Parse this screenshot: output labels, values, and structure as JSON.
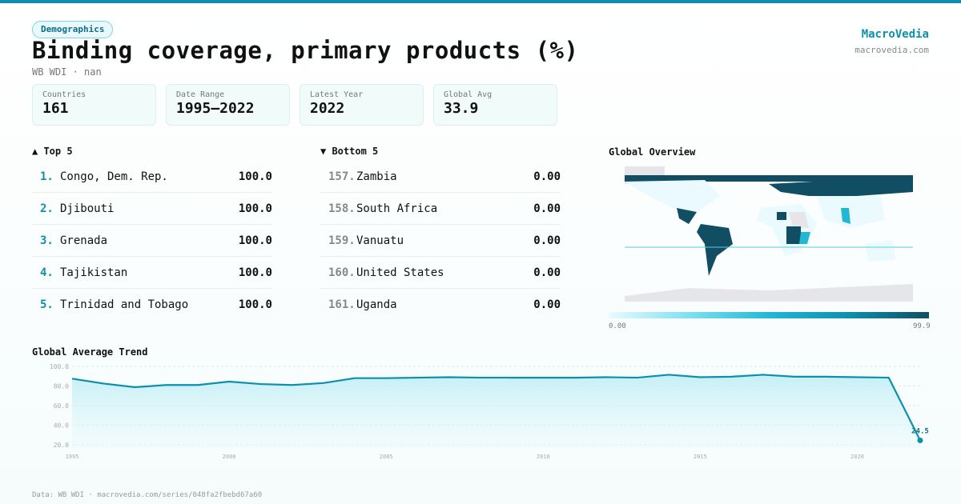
{
  "header": {
    "badge": "Demographics",
    "title": "Binding coverage, primary products (%)",
    "subtitle": "WB WDI · nan",
    "brand": "MacroVedia",
    "brand_url": "macrovedia.com"
  },
  "stats": [
    {
      "label": "Countries",
      "value": "161"
    },
    {
      "label": "Date Range",
      "value": "1995–2022"
    },
    {
      "label": "Latest Year",
      "value": "2022"
    },
    {
      "label": "Global Avg",
      "value": "33.9"
    }
  ],
  "top5": {
    "title": "▲ Top 5",
    "items": [
      {
        "rank": "1.",
        "name": "Congo, Dem. Rep.",
        "value": "100.0"
      },
      {
        "rank": "2.",
        "name": "Djibouti",
        "value": "100.0"
      },
      {
        "rank": "3.",
        "name": "Grenada",
        "value": "100.0"
      },
      {
        "rank": "4.",
        "name": "Tajikistan",
        "value": "100.0"
      },
      {
        "rank": "5.",
        "name": "Trinidad and Tobago",
        "value": "100.0"
      }
    ]
  },
  "bottom5": {
    "title": "▼ Bottom 5",
    "items": [
      {
        "rank": "157.",
        "name": "Zambia",
        "value": "0.00"
      },
      {
        "rank": "158.",
        "name": "South Africa",
        "value": "0.00"
      },
      {
        "rank": "159.",
        "name": "Vanuatu",
        "value": "0.00"
      },
      {
        "rank": "160.",
        "name": "United States",
        "value": "0.00"
      },
      {
        "rank": "161.",
        "name": "Uganda",
        "value": "0.00"
      }
    ]
  },
  "map": {
    "title": "Global Overview",
    "legend_min": "0.00",
    "legend_max": "99.9",
    "colors": {
      "low": "#eafaff",
      "mid": "#22b8d4",
      "high": "#124e63",
      "nodata": "#e6e6ea"
    }
  },
  "chart_data": {
    "type": "area",
    "title": "Global Average Trend",
    "x": [
      1995,
      1996,
      1997,
      1998,
      1999,
      2000,
      2001,
      2002,
      2003,
      2004,
      2005,
      2006,
      2007,
      2008,
      2009,
      2010,
      2011,
      2012,
      2013,
      2014,
      2015,
      2016,
      2017,
      2018,
      2019,
      2020,
      2021,
      2022
    ],
    "values": [
      87.5,
      82.5,
      78.8,
      81,
      81,
      84.5,
      82,
      81,
      83,
      88,
      88,
      88.5,
      89,
      88.5,
      88.5,
      88.5,
      88.5,
      89,
      88.5,
      91.5,
      89,
      89.5,
      91.5,
      89.5,
      89.5,
      89,
      88.5,
      24.5
    ],
    "ylim": [
      20,
      100
    ],
    "yticks": [
      "100.0",
      "80.0",
      "60.0",
      "40.0",
      "20.0"
    ],
    "xticks": [
      "1995",
      "2000",
      "2005",
      "2010",
      "2015",
      "2020"
    ],
    "last_label": "24.5",
    "color": "#0e8fae",
    "grid": true
  },
  "footer": "Data: WB WDI · macrovedia.com/series/048fa2fbebd67a60"
}
